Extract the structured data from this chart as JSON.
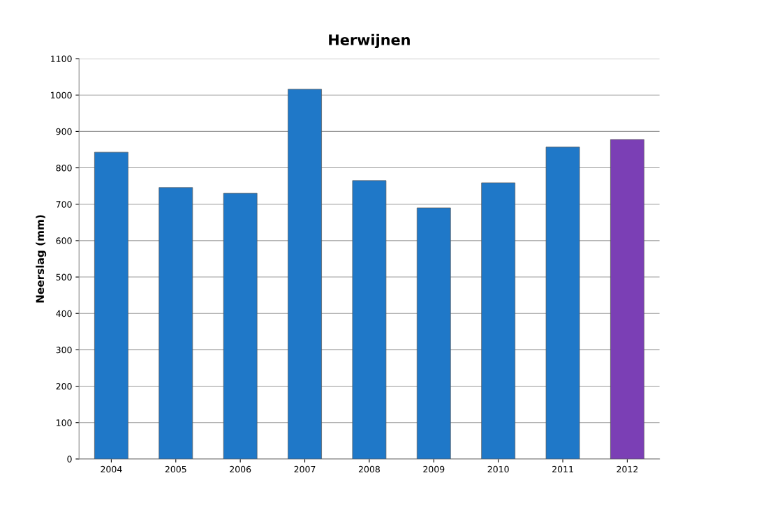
{
  "chart_data": {
    "type": "bar",
    "title": "Herwijnen",
    "ylabel": "Neerslag (mm)",
    "categories": [
      "2004",
      "2005",
      "2006",
      "2007",
      "2008",
      "2009",
      "2010",
      "2011",
      "2012"
    ],
    "values": [
      843,
      746,
      730,
      1016,
      765,
      690,
      759,
      857,
      878
    ],
    "colors": [
      "#1f78c8",
      "#1f78c8",
      "#1f78c8",
      "#1f78c8",
      "#1f78c8",
      "#1f78c8",
      "#1f78c8",
      "#1f78c8",
      "#7b3fb5"
    ],
    "ylim": [
      0,
      1100
    ],
    "yticks": [
      0,
      100,
      200,
      300,
      400,
      500,
      600,
      700,
      800,
      900,
      1000,
      1100
    ],
    "grid": "y"
  }
}
